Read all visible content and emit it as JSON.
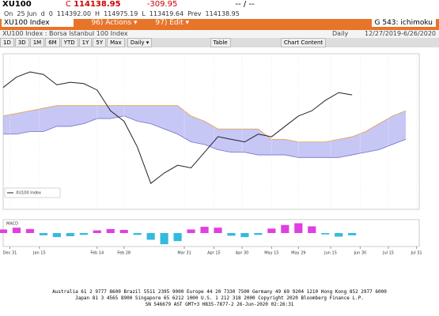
{
  "header": {
    "ticker": "XU100",
    "last_label": "C",
    "last": "114138.95",
    "change": "-309.95",
    "bidask": "-- / --",
    "row2": [
      "On",
      "25 Jun",
      "d",
      "0",
      "114392.00",
      "H",
      "114975.19",
      "L",
      "113419.64",
      "Prev",
      "114138.95"
    ]
  },
  "toolbar": {
    "security": "XU100 Index",
    "actions": "96) Actions ▾",
    "edit": "97) Edit ▾",
    "page": "G 543: ichimoku"
  },
  "subheader": {
    "name": "XU100 Index : Borsa Istanbul 100 Index",
    "frequency": "Daily",
    "range": "12/27/2019-6/26/2020"
  },
  "buttons": [
    "1D",
    "3D",
    "1M",
    "6M",
    "YTD",
    "1Y",
    "5Y",
    "Max"
  ],
  "period": "Daily ▾",
  "table": "Table",
  "chart_content": "Chart Content",
  "chart_data": {
    "type": "line",
    "series": [
      {
        "name": "XU100 Index",
        "color": "#222222",
        "values": [
          117000,
          121000,
          123000,
          122000,
          118000,
          119000,
          118500,
          116000,
          108000,
          104000,
          94000,
          80000,
          84000,
          87000,
          86000,
          92000,
          98000,
          97000,
          96000,
          99000,
          98000,
          102000,
          106000,
          108000,
          112000,
          115000,
          114138.95
        ]
      }
    ],
    "cloud": {
      "color": "#9999ee",
      "upper": [
        106000,
        107000,
        108000,
        109000,
        110000,
        110000,
        110000,
        110000,
        110000,
        110000,
        110000,
        110000,
        110000,
        110000,
        106000,
        104000,
        101000,
        101000,
        101000,
        101000,
        97000,
        97000,
        96000,
        96000,
        96000,
        97000,
        98000,
        100000,
        103000,
        106000,
        108000
      ],
      "lower": [
        99000,
        99000,
        100000,
        100000,
        102000,
        102000,
        103000,
        105000,
        105000,
        106000,
        104000,
        103000,
        101000,
        99000,
        96000,
        95000,
        93000,
        92000,
        92000,
        91000,
        91000,
        91000,
        90000,
        90000,
        90000,
        90000,
        91000,
        92000,
        93000,
        95000,
        97000
      ]
    },
    "xlim": [
      0,
      31
    ],
    "ylim": [
      70000,
      130000
    ],
    "xticks": [
      {
        "value": 0.5,
        "label": "Dec 31"
      },
      {
        "value": 2.7,
        "label": "Jan 15"
      },
      {
        "value": 7,
        "label": "Feb 14"
      },
      {
        "value": 9,
        "label": "Feb 28"
      },
      {
        "value": 13.5,
        "label": "Mar 31"
      },
      {
        "value": 15.7,
        "label": "Apr 15"
      },
      {
        "value": 17.8,
        "label": "Apr 30"
      },
      {
        "value": 20,
        "label": "May 15"
      },
      {
        "value": 22,
        "label": "May 29"
      },
      {
        "value": 24.4,
        "label": "Jun 15"
      },
      {
        "value": 26.6,
        "label": "Jun 30"
      },
      {
        "value": 28.7,
        "label": "Jul 15"
      },
      {
        "value": 30.8,
        "label": "Jul 31"
      }
    ],
    "macd": {
      "name": "MACD",
      "positive_color": "#e040e0",
      "negative_color": "#33bbdd",
      "ylim": [
        -3000,
        3000
      ],
      "values": [
        800,
        1200,
        900,
        -500,
        -900,
        -700,
        -400,
        600,
        900,
        700,
        -400,
        -1500,
        -2500,
        -1800,
        800,
        1400,
        1200,
        -600,
        -900,
        -400,
        1000,
        1800,
        2200,
        1500,
        -300,
        -800,
        -500
      ]
    }
  },
  "footer": [
    "Australia 61 2 9777 8600 Brazil 5511 2395 9000 Europe 44 20 7330 7500 Germany 49 69 9204 1210 Hong Kong 852 2977 6000",
    "Japan 81 3 4565 8900        Singapore 65 6212 1000        U.S. 1 212 318 2000        Copyright 2020 Bloomberg Finance L.P.",
    "SN 546679 AST  GMT+3 H835-7877-2 26-Jun-2020 02:26:31"
  ]
}
